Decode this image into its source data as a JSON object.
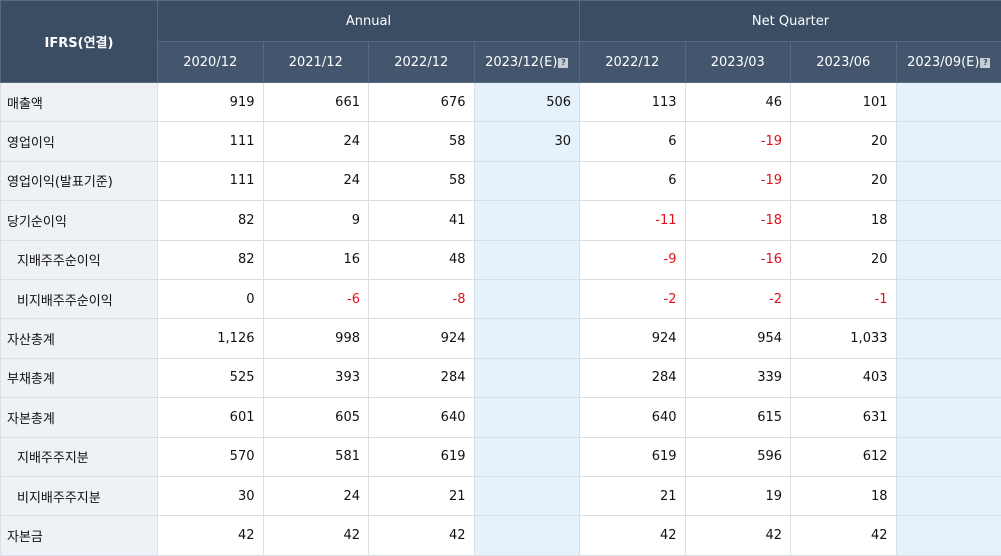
{
  "header": {
    "corner": "IFRS(연결)",
    "annual": "Annual",
    "quarter": "Net Quarter",
    "periods": [
      "2020/12",
      "2021/12",
      "2022/12",
      "2023/12(E)",
      "2022/12",
      "2023/03",
      "2023/06",
      "2023/09(E)"
    ],
    "estimate_icon": "?"
  },
  "rows": [
    {
      "label": "매출액",
      "indent": false,
      "values": [
        "919",
        "661",
        "676",
        "506",
        "113",
        "46",
        "101",
        ""
      ]
    },
    {
      "label": "영업이익",
      "indent": false,
      "values": [
        "111",
        "24",
        "58",
        "30",
        "6",
        "-19",
        "20",
        ""
      ]
    },
    {
      "label": "영업이익(발표기준)",
      "indent": false,
      "values": [
        "111",
        "24",
        "58",
        "",
        "6",
        "-19",
        "20",
        ""
      ]
    },
    {
      "label": "당기순이익",
      "indent": false,
      "values": [
        "82",
        "9",
        "41",
        "",
        "-11",
        "-18",
        "18",
        ""
      ]
    },
    {
      "label": "지배주주순이익",
      "indent": true,
      "values": [
        "82",
        "16",
        "48",
        "",
        "-9",
        "-16",
        "20",
        ""
      ]
    },
    {
      "label": "비지배주주순이익",
      "indent": true,
      "values": [
        "0",
        "-6",
        "-8",
        "",
        "-2",
        "-2",
        "-1",
        ""
      ]
    },
    {
      "label": "자산총계",
      "indent": false,
      "values": [
        "1,126",
        "998",
        "924",
        "",
        "924",
        "954",
        "1,033",
        ""
      ]
    },
    {
      "label": "부채총계",
      "indent": false,
      "values": [
        "525",
        "393",
        "284",
        "",
        "284",
        "339",
        "403",
        ""
      ]
    },
    {
      "label": "자본총계",
      "indent": false,
      "values": [
        "601",
        "605",
        "640",
        "",
        "640",
        "615",
        "631",
        ""
      ]
    },
    {
      "label": "지배주주지분",
      "indent": true,
      "values": [
        "570",
        "581",
        "619",
        "",
        "619",
        "596",
        "612",
        ""
      ]
    },
    {
      "label": "비지배주주지분",
      "indent": true,
      "values": [
        "30",
        "24",
        "21",
        "",
        "21",
        "19",
        "18",
        ""
      ]
    },
    {
      "label": "자본금",
      "indent": false,
      "values": [
        "42",
        "42",
        "42",
        "",
        "42",
        "42",
        "42",
        ""
      ]
    }
  ],
  "colors": {
    "header_bg": "#3a4d63",
    "label_bg": "#eef1f5",
    "estimate_bg": "#e5f2fb",
    "negative": "#e0101a"
  }
}
